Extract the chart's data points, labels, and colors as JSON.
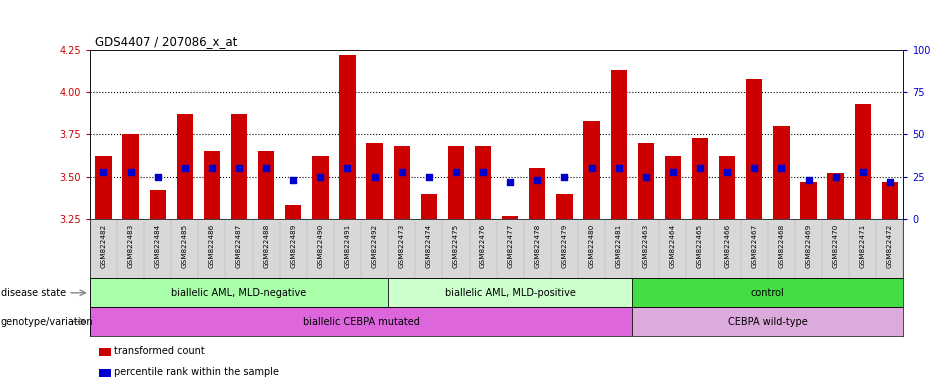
{
  "title": "GDS4407 / 207086_x_at",
  "samples": [
    "GSM822482",
    "GSM822483",
    "GSM822484",
    "GSM822485",
    "GSM822486",
    "GSM822487",
    "GSM822488",
    "GSM822489",
    "GSM822490",
    "GSM822491",
    "GSM822492",
    "GSM822473",
    "GSM822474",
    "GSM822475",
    "GSM822476",
    "GSM822477",
    "GSM822478",
    "GSM822479",
    "GSM822480",
    "GSM822481",
    "GSM822463",
    "GSM822464",
    "GSM822465",
    "GSM822466",
    "GSM822467",
    "GSM822468",
    "GSM822469",
    "GSM822470",
    "GSM822471",
    "GSM822472"
  ],
  "bar_values": [
    3.62,
    3.75,
    3.42,
    3.87,
    3.65,
    3.87,
    3.65,
    3.33,
    3.62,
    4.22,
    3.7,
    3.68,
    3.4,
    3.68,
    3.68,
    3.27,
    3.55,
    3.4,
    3.83,
    4.13,
    3.7,
    3.62,
    3.73,
    3.62,
    4.08,
    3.8,
    3.47,
    3.52,
    3.93,
    3.47
  ],
  "dot_values": [
    3.53,
    3.53,
    3.5,
    3.55,
    3.55,
    3.55,
    3.55,
    3.48,
    3.5,
    3.55,
    3.5,
    3.53,
    3.5,
    3.53,
    3.53,
    3.47,
    3.48,
    3.5,
    3.55,
    3.55,
    3.5,
    3.53,
    3.55,
    3.53,
    3.55,
    3.55,
    3.48,
    3.5,
    3.53,
    3.47
  ],
  "ylim": [
    3.25,
    4.25
  ],
  "yticks": [
    3.25,
    3.5,
    3.75,
    4.0,
    4.25
  ],
  "right_yticks": [
    0,
    25,
    50,
    75,
    100
  ],
  "right_ylim": [
    0,
    100
  ],
  "hlines": [
    3.5,
    3.75,
    4.0
  ],
  "bar_color": "#cc0000",
  "dot_color": "#0000cc",
  "bar_width": 0.6,
  "groups": [
    {
      "label": "biallelic AML, MLD-negative",
      "start": 0,
      "end": 11,
      "color": "#aaffaa"
    },
    {
      "label": "biallelic AML, MLD-positive",
      "start": 11,
      "end": 20,
      "color": "#ccffcc"
    },
    {
      "label": "control",
      "start": 20,
      "end": 30,
      "color": "#44dd44"
    }
  ],
  "genotype_groups": [
    {
      "label": "biallelic CEBPA mutated",
      "start": 0,
      "end": 20,
      "color": "#dd66dd"
    },
    {
      "label": "CEBPA wild-type",
      "start": 20,
      "end": 30,
      "color": "#ddaadd"
    }
  ],
  "legend_items": [
    {
      "label": "transformed count",
      "color": "#cc0000"
    },
    {
      "label": "percentile rank within the sample",
      "color": "#0000cc"
    }
  ],
  "left_axis_color": "#cc0000",
  "right_axis_color": "#0000cc",
  "fig_bg": "#ffffff",
  "plot_bg": "#ffffff",
  "sample_row_bg": "#d8d8d8",
  "n_samples": 30,
  "disease_label": "disease state",
  "geno_label": "genotype/variation"
}
